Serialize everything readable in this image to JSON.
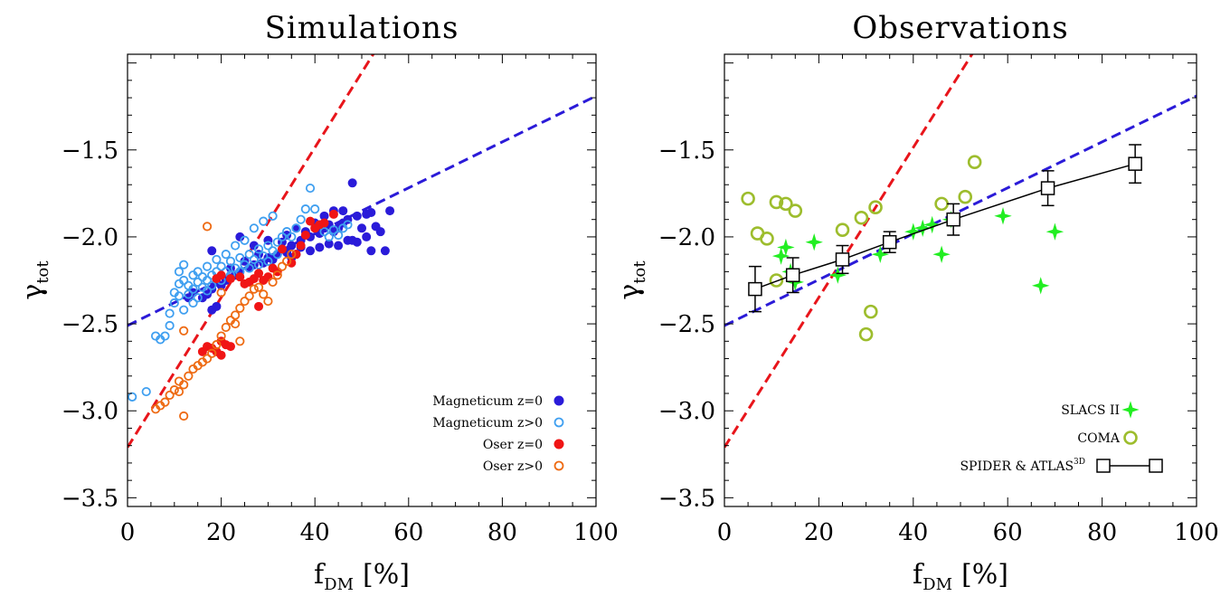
{
  "chart_data": [
    {
      "type": "scatter",
      "title": "Simulations",
      "xlabel_main": "f",
      "xlabel_sub": "DM",
      "xlabel_unit": "[%]",
      "ylabel_main": "γ",
      "ylabel_sub": "tot",
      "xlim": [
        0,
        100
      ],
      "ylim": [
        -3.55,
        -0.95
      ],
      "xticks": [
        0,
        20,
        40,
        60,
        80,
        100
      ],
      "yticks": [
        -3.5,
        -3.0,
        -2.5,
        -2.0,
        -1.5
      ],
      "xtick_labels": [
        "0",
        "20",
        "40",
        "60",
        "80",
        "100"
      ],
      "ytick_labels": [
        "−3.5",
        "−3.0",
        "−2.5",
        "−2.0",
        "−1.5"
      ],
      "grid": false,
      "legend_position": "bottom-right",
      "fit_lines": [
        {
          "color": "#e8151b",
          "x": [
            0,
            100
          ],
          "y": [
            -3.21,
            1.1
          ]
        },
        {
          "color": "#2b1bd8",
          "x": [
            0,
            100
          ],
          "y": [
            -2.51,
            -1.19
          ]
        }
      ],
      "series": [
        {
          "name": "Magneticum z=0",
          "marker": "filled-circle",
          "color": "#2a1bd9",
          "points": [
            [
              48,
              -1.69
            ],
            [
              56,
              -1.85
            ],
            [
              52,
              -1.86
            ],
            [
              51,
              -1.87
            ],
            [
              49,
              -1.88
            ],
            [
              47,
              -1.9
            ],
            [
              46,
              -1.92
            ],
            [
              45,
              -1.95
            ],
            [
              44,
              -1.97
            ],
            [
              43,
              -1.93
            ],
            [
              42,
              -1.95
            ],
            [
              41,
              -1.98
            ],
            [
              40,
              -1.92
            ],
            [
              39,
              -2.0
            ],
            [
              38,
              -1.97
            ],
            [
              37,
              -2.02
            ],
            [
              36,
              -1.95
            ],
            [
              35,
              -2.05
            ],
            [
              34,
              -1.99
            ],
            [
              33,
              -2.03
            ],
            [
              50,
              -1.95
            ],
            [
              53,
              -1.94
            ],
            [
              54,
              -1.97
            ],
            [
              51,
              -2.0
            ],
            [
              49,
              -2.03
            ],
            [
              47,
              -2.02
            ],
            [
              45,
              -2.05
            ],
            [
              43,
              -2.04
            ],
            [
              41,
              -2.06
            ],
            [
              39,
              -2.08
            ],
            [
              37,
              -2.06
            ],
            [
              36,
              -2.1
            ],
            [
              35,
              -2.12
            ],
            [
              34,
              -2.09
            ],
            [
              32,
              -2.1
            ],
            [
              31,
              -2.13
            ],
            [
              30,
              -2.12
            ],
            [
              29,
              -2.15
            ],
            [
              28,
              -2.1
            ],
            [
              27,
              -2.16
            ],
            [
              26,
              -2.18
            ],
            [
              25,
              -2.14
            ],
            [
              24,
              -2.2
            ],
            [
              23,
              -2.22
            ],
            [
              22,
              -2.18
            ],
            [
              21,
              -2.25
            ],
            [
              20,
              -2.28
            ],
            [
              19,
              -2.26
            ],
            [
              18,
              -2.3
            ],
            [
              17,
              -2.33
            ],
            [
              16,
              -2.35
            ],
            [
              18,
              -2.42
            ],
            [
              19,
              -2.4
            ],
            [
              14,
              -2.32
            ],
            [
              13,
              -2.35
            ],
            [
              18,
              -2.08
            ],
            [
              24,
              -2.0
            ],
            [
              27,
              -2.05
            ],
            [
              30,
              -2.02
            ],
            [
              52,
              -2.08
            ],
            [
              55,
              -2.08
            ],
            [
              48,
              -2.02
            ],
            [
              46,
              -1.85
            ],
            [
              44,
              -1.85
            ],
            [
              42,
              -1.88
            ]
          ]
        },
        {
          "name": "Magneticum z>0",
          "marker": "open-circle",
          "color": "#3f9ff0",
          "points": [
            [
              1,
              -2.92
            ],
            [
              4,
              -2.89
            ],
            [
              6,
              -2.57
            ],
            [
              7,
              -2.59
            ],
            [
              8,
              -2.57
            ],
            [
              9,
              -2.51
            ],
            [
              9,
              -2.44
            ],
            [
              10,
              -2.38
            ],
            [
              10,
              -2.32
            ],
            [
              11,
              -2.27
            ],
            [
              11,
              -2.2
            ],
            [
              12,
              -2.16
            ],
            [
              12,
              -2.25
            ],
            [
              13,
              -2.28
            ],
            [
              13,
              -2.33
            ],
            [
              14,
              -2.3
            ],
            [
              14,
              -2.22
            ],
            [
              15,
              -2.26
            ],
            [
              15,
              -2.2
            ],
            [
              16,
              -2.29
            ],
            [
              16,
              -2.23
            ],
            [
              17,
              -2.31
            ],
            [
              17,
              -2.25
            ],
            [
              18,
              -2.28
            ],
            [
              18,
              -2.22
            ],
            [
              19,
              -2.2
            ],
            [
              20,
              -2.25
            ],
            [
              20,
              -2.17
            ],
            [
              21,
              -2.2
            ],
            [
              22,
              -2.14
            ],
            [
              22,
              -2.22
            ],
            [
              23,
              -2.18
            ],
            [
              24,
              -2.12
            ],
            [
              24,
              -2.2
            ],
            [
              25,
              -2.16
            ],
            [
              26,
              -2.1
            ],
            [
              26,
              -2.18
            ],
            [
              27,
              -2.13
            ],
            [
              28,
              -2.07
            ],
            [
              28,
              -2.16
            ],
            [
              29,
              -2.11
            ],
            [
              30,
              -2.05
            ],
            [
              30,
              -2.14
            ],
            [
              31,
              -2.08
            ],
            [
              32,
              -2.03
            ],
            [
              32,
              -2.1
            ],
            [
              33,
              -2.0
            ],
            [
              34,
              -1.97
            ],
            [
              35,
              -2.0
            ],
            [
              36,
              -1.95
            ],
            [
              37,
              -1.9
            ],
            [
              38,
              -1.84
            ],
            [
              39,
              -1.72
            ],
            [
              40,
              -1.84
            ],
            [
              41,
              -1.93
            ],
            [
              42,
              -1.97
            ],
            [
              43,
              -2.0
            ],
            [
              44,
              -1.96
            ],
            [
              45,
              -1.99
            ],
            [
              46,
              -1.95
            ],
            [
              47,
              -1.93
            ],
            [
              31,
              -1.88
            ],
            [
              29,
              -1.91
            ],
            [
              27,
              -1.95
            ],
            [
              25,
              -2.02
            ],
            [
              23,
              -2.05
            ],
            [
              21,
              -2.1
            ],
            [
              19,
              -2.13
            ],
            [
              17,
              -2.17
            ],
            [
              15,
              -2.35
            ],
            [
              14,
              -2.38
            ],
            [
              12,
              -2.42
            ],
            [
              11,
              -2.34
            ]
          ]
        },
        {
          "name": "Oser z=0",
          "marker": "filled-circle",
          "color": "#f01515",
          "points": [
            [
              16,
              -2.66
            ],
            [
              17,
              -2.63
            ],
            [
              18,
              -2.64
            ],
            [
              19,
              -2.66
            ],
            [
              20,
              -2.68
            ],
            [
              20,
              -2.6
            ],
            [
              21,
              -2.62
            ],
            [
              22,
              -2.63
            ],
            [
              20,
              -2.22
            ],
            [
              19,
              -2.24
            ],
            [
              22,
              -2.24
            ],
            [
              24,
              -2.23
            ],
            [
              25,
              -2.27
            ],
            [
              26,
              -2.26
            ],
            [
              27,
              -2.24
            ],
            [
              28,
              -2.21
            ],
            [
              29,
              -2.25
            ],
            [
              30,
              -2.23
            ],
            [
              31,
              -2.18
            ],
            [
              32,
              -2.2
            ],
            [
              33,
              -2.07
            ],
            [
              35,
              -2.15
            ],
            [
              36,
              -2.1
            ],
            [
              37,
              -2.05
            ],
            [
              38,
              -1.99
            ],
            [
              39,
              -1.91
            ],
            [
              40,
              -1.95
            ],
            [
              41,
              -1.93
            ],
            [
              42,
              -1.92
            ],
            [
              44,
              -1.87
            ],
            [
              28,
              -2.4
            ]
          ]
        },
        {
          "name": "Oser z>0",
          "marker": "open-circle",
          "color": "#ee6a12",
          "points": [
            [
              6,
              -2.99
            ],
            [
              7,
              -2.97
            ],
            [
              8,
              -2.95
            ],
            [
              9,
              -2.91
            ],
            [
              10,
              -2.88
            ],
            [
              11,
              -2.89
            ],
            [
              12,
              -2.85
            ],
            [
              11,
              -2.83
            ],
            [
              12,
              -3.03
            ],
            [
              13,
              -2.8
            ],
            [
              14,
              -2.76
            ],
            [
              15,
              -2.74
            ],
            [
              16,
              -2.72
            ],
            [
              17,
              -2.7
            ],
            [
              18,
              -2.67
            ],
            [
              19,
              -2.62
            ],
            [
              20,
              -2.57
            ],
            [
              21,
              -2.52
            ],
            [
              22,
              -2.48
            ],
            [
              23,
              -2.45
            ],
            [
              24,
              -2.41
            ],
            [
              25,
              -2.37
            ],
            [
              26,
              -2.34
            ],
            [
              27,
              -2.3
            ],
            [
              28,
              -2.29
            ],
            [
              29,
              -2.33
            ],
            [
              30,
              -2.37
            ],
            [
              31,
              -2.26
            ],
            [
              32,
              -2.22
            ],
            [
              33,
              -2.17
            ],
            [
              34,
              -2.14
            ],
            [
              35,
              -2.1
            ],
            [
              17,
              -1.94
            ],
            [
              12,
              -2.54
            ],
            [
              20,
              -2.32
            ],
            [
              24,
              -2.6
            ],
            [
              23,
              -2.5
            ]
          ]
        }
      ]
    },
    {
      "type": "scatter",
      "title": "Observations",
      "xlabel_main": "f",
      "xlabel_sub": "DM",
      "xlabel_unit": "[%]",
      "ylabel_main": "γ",
      "ylabel_sub": "tot",
      "xlim": [
        0,
        100
      ],
      "ylim": [
        -3.55,
        -0.95
      ],
      "xticks": [
        0,
        20,
        40,
        60,
        80,
        100
      ],
      "yticks": [
        -3.5,
        -3.0,
        -2.5,
        -2.0,
        -1.5
      ],
      "xtick_labels": [
        "0",
        "20",
        "40",
        "60",
        "80",
        "100"
      ],
      "ytick_labels": [
        "−3.5",
        "−3.0",
        "−2.5",
        "−2.0",
        "−1.5"
      ],
      "grid": false,
      "legend_position": "bottom-right",
      "fit_lines": [
        {
          "color": "#e8151b",
          "x": [
            0,
            100
          ],
          "y": [
            -3.21,
            1.1
          ]
        },
        {
          "color": "#2b1bd8",
          "x": [
            0,
            100
          ],
          "y": [
            -2.51,
            -1.19
          ]
        }
      ],
      "series": [
        {
          "name": "SLACS II",
          "marker": "star",
          "color": "#22ee22",
          "points": [
            [
              12,
              -2.11
            ],
            [
              13,
              -2.06
            ],
            [
              14,
              -2.2
            ],
            [
              15,
              -2.26
            ],
            [
              19,
              -2.03
            ],
            [
              24,
              -2.22
            ],
            [
              33,
              -2.1
            ],
            [
              40,
              -1.97
            ],
            [
              42,
              -1.95
            ],
            [
              44,
              -1.93
            ],
            [
              46,
              -2.1
            ],
            [
              48,
              -1.9
            ],
            [
              59,
              -1.88
            ],
            [
              67,
              -2.28
            ],
            [
              70,
              -1.97
            ]
          ]
        },
        {
          "name": "COMA",
          "marker": "open-circle",
          "color": "#9dbd2d",
          "points": [
            [
              5,
              -1.78
            ],
            [
              7,
              -1.98
            ],
            [
              9,
              -2.01
            ],
            [
              11,
              -1.8
            ],
            [
              11,
              -2.25
            ],
            [
              13,
              -1.81
            ],
            [
              15,
              -1.85
            ],
            [
              25,
              -1.96
            ],
            [
              29,
              -1.89
            ],
            [
              30,
              -2.56
            ],
            [
              31,
              -2.43
            ],
            [
              32,
              -1.83
            ],
            [
              46,
              -1.81
            ],
            [
              51,
              -1.77
            ],
            [
              53,
              -1.57
            ]
          ]
        },
        {
          "name": "SPIDER & ATLAS",
          "name_sup": "3D",
          "marker": "open-square-errorbar",
          "color": "#000000",
          "x": [
            6.5,
            14.5,
            25,
            35,
            48.5,
            68.5,
            87
          ],
          "y": [
            -2.3,
            -2.22,
            -2.13,
            -2.03,
            -1.9,
            -1.72,
            -1.58
          ],
          "yerr": [
            0.13,
            0.1,
            0.08,
            0.06,
            0.09,
            0.1,
            0.11
          ]
        }
      ]
    }
  ]
}
